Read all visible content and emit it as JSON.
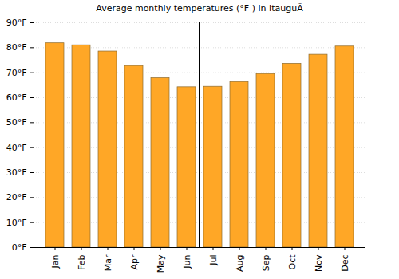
{
  "chart_data": {
    "type": "bar",
    "title": "Average monthly temperatures (°F ) in ItauguÃ",
    "categories": [
      "Jan",
      "Feb",
      "Mar",
      "Apr",
      "May",
      "Jun",
      "Jul",
      "Aug",
      "Sep",
      "Oct",
      "Nov",
      "Dec"
    ],
    "values": [
      81.8,
      81,
      78.5,
      72.7,
      67.8,
      64.2,
      64.4,
      66.3,
      69.5,
      73.6,
      77.2,
      80.5
    ],
    "color": "#ffa726",
    "ylim": [
      0,
      90
    ],
    "yticks": [
      {
        "value": 0,
        "label": "0°F"
      },
      {
        "value": 10,
        "label": "10°F"
      },
      {
        "value": 20,
        "label": "20°F"
      },
      {
        "value": 30,
        "label": "30°F"
      },
      {
        "value": 40,
        "label": "40°F"
      },
      {
        "value": 50,
        "label": "50°F"
      },
      {
        "value": 60,
        "label": "60°F"
      },
      {
        "value": 70,
        "label": "70°F"
      },
      {
        "value": 80,
        "label": "80°F"
      },
      {
        "value": 90,
        "label": "90°F"
      }
    ],
    "grid": true
  }
}
